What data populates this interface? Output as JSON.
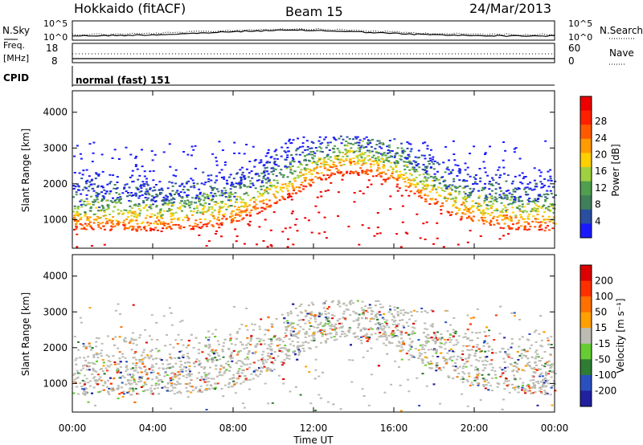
{
  "header": {
    "station": "Hokkaido (fitACF)",
    "beam": "Beam 15",
    "date": "24/Mar/2013"
  },
  "strip_panels": {
    "nsky_label": "N.Sky",
    "nsearch_label": "N.Search",
    "noise_ticks_left": [
      "10^5",
      "10^0"
    ],
    "noise_ticks_right": [
      "10^5",
      "10^0"
    ],
    "freq_label_line1": "Freq.",
    "freq_label_line2": "[MHz]",
    "freq_ticks": [
      "18",
      "8"
    ],
    "nave_label": "Nave",
    "nave_ticks": [
      "60",
      "0"
    ],
    "cpid_label": "CPID",
    "cpid_text": "normal (fast) 151"
  },
  "chart_data": [
    {
      "type": "heatmap",
      "panel": "power",
      "ylabel": "Slant Range [km]",
      "xlabel": "",
      "y_ticks": [
        1000,
        2000,
        3000,
        4000
      ],
      "ylim": [
        200,
        4600
      ],
      "colorbar": {
        "label": "Power [dB]",
        "ticks": [
          "4",
          "8",
          "12",
          "16",
          "20",
          "24",
          "28"
        ],
        "colors": [
          "#1a1aff",
          "#2a4fa0",
          "#3f7f5a",
          "#4f9f4f",
          "#9fd040",
          "#ffd000",
          "#ff9a00",
          "#ff5a00",
          "#ff2000",
          "#ee0000"
        ]
      }
    },
    {
      "type": "heatmap",
      "panel": "velocity",
      "ylabel": "Slant Range [km]",
      "xlabel": "Time UT",
      "y_ticks": [
        1000,
        2000,
        3000,
        4000
      ],
      "ylim": [
        200,
        4600
      ],
      "x_ticks": [
        "00:00",
        "04:00",
        "08:00",
        "12:00",
        "16:00",
        "20:00",
        "00:00"
      ],
      "colorbar": {
        "label": "Velocity [m s⁻¹]",
        "ticks": [
          "200",
          "100",
          "50",
          "15",
          "-15",
          "-50",
          "-100",
          "-200"
        ],
        "colors": [
          "#2020a0",
          "#2a50c0",
          "#2e7d32",
          "#66cc33",
          "#bcbcb4",
          "#ffa000",
          "#ff7000",
          "#ff3000",
          "#dd0000"
        ]
      }
    }
  ]
}
